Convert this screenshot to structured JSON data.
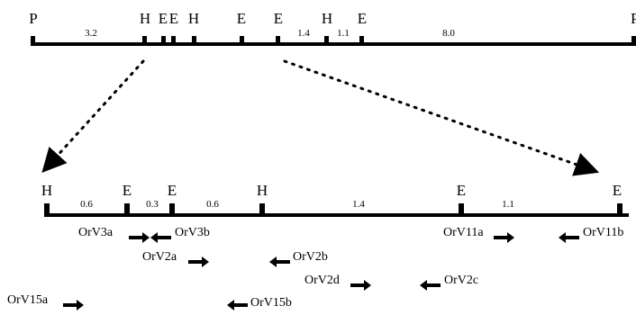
{
  "top_map": {
    "site_labels": [
      "P",
      "H",
      "E",
      "E",
      "H",
      "E",
      "E",
      "H",
      "E",
      "P"
    ],
    "distance_labels": [
      "3.2",
      "1.4",
      "1.1",
      "8.0"
    ]
  },
  "detail_map": {
    "site_labels": [
      "H",
      "E",
      "E",
      "H",
      "E",
      "E"
    ],
    "distance_labels": [
      "0.6",
      "0.3",
      "0.6",
      "1.4",
      "1.1"
    ]
  },
  "primers": [
    {
      "label": "OrV3a",
      "direction": "right"
    },
    {
      "label": "OrV3b",
      "direction": "left"
    },
    {
      "label": "OrV2a",
      "direction": "right"
    },
    {
      "label": "OrV2b",
      "direction": "left"
    },
    {
      "label": "OrV2d",
      "direction": "right"
    },
    {
      "label": "OrV2c",
      "direction": "left"
    },
    {
      "label": "OrV15a",
      "direction": "right"
    },
    {
      "label": "OrV15b",
      "direction": "left"
    },
    {
      "label": "OrV11a",
      "direction": "right"
    },
    {
      "label": "OrV11b",
      "direction": "left"
    }
  ]
}
